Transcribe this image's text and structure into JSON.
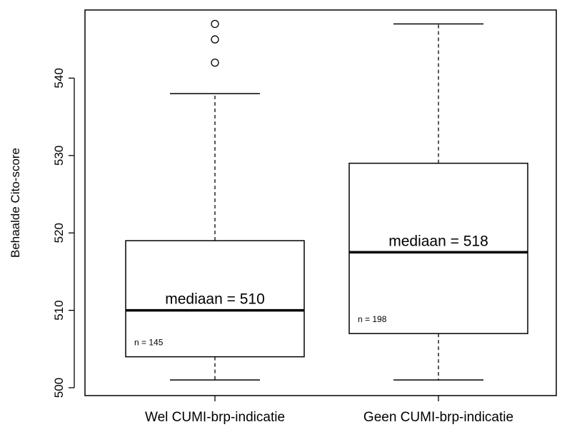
{
  "chart_data": {
    "type": "boxplot",
    "ylabel": "Behaalde Cito-score",
    "xlabel": "",
    "ylim": [
      500,
      548
    ],
    "yticks": [
      500,
      510,
      520,
      530,
      540
    ],
    "grid": false,
    "categories": [
      "Wel CUMI-brp-indicatie",
      "Geen CUMI-brp-indicatie"
    ],
    "boxes": [
      {
        "category": "Wel CUMI-brp-indicatie",
        "whisker_low": 501,
        "q1": 504,
        "median": 510,
        "q3": 519,
        "whisker_high": 538,
        "outliers": [
          542,
          545,
          547
        ],
        "median_label": "mediaan =  510",
        "n_label": "n =  145"
      },
      {
        "category": "Geen CUMI-brp-indicatie",
        "whisker_low": 501,
        "q1": 507,
        "median": 517.5,
        "q3": 529,
        "whisker_high": 547,
        "outliers": [],
        "median_label": "mediaan =  518",
        "n_label": "n =  198"
      }
    ]
  }
}
